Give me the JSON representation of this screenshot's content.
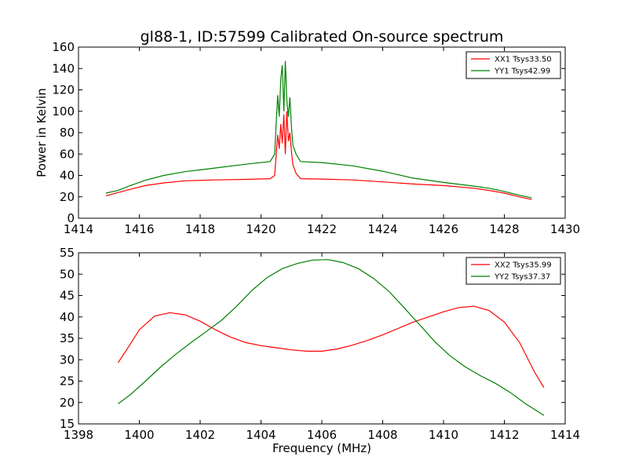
{
  "figure": {
    "title": "gl88-1, ID:57599 Calibrated On-source spectrum"
  },
  "chart_data": [
    {
      "type": "line",
      "title": "gl88-1, ID:57599 Calibrated On-source spectrum",
      "xlabel": "",
      "ylabel": "Power in Kelvin",
      "xlim": [
        1414,
        1430
      ],
      "ylim": [
        0,
        160
      ],
      "xticks": [
        "1414",
        "1416",
        "1418",
        "1420",
        "1422",
        "1424",
        "1426",
        "1428",
        "1430"
      ],
      "yticks": [
        "0",
        "20",
        "40",
        "60",
        "80",
        "100",
        "120",
        "140",
        "160"
      ],
      "grid": false,
      "legend_position": "top-right",
      "series": [
        {
          "name": "XX1 Tsys33.50",
          "color": "#ff0000",
          "points": [
            [
              1414.9,
              21
            ],
            [
              1415.3,
              24
            ],
            [
              1415.7,
              27
            ],
            [
              1416.2,
              30.5
            ],
            [
              1416.8,
              33
            ],
            [
              1417.5,
              35
            ],
            [
              1418.5,
              35.8
            ],
            [
              1419.5,
              36.3
            ],
            [
              1420.3,
              37
            ],
            [
              1420.45,
              40
            ],
            [
              1420.5,
              60
            ],
            [
              1420.55,
              78
            ],
            [
              1420.6,
              65
            ],
            [
              1420.65,
              88
            ],
            [
              1420.7,
              70
            ],
            [
              1420.75,
              97
            ],
            [
              1420.8,
              60
            ],
            [
              1420.85,
              100
            ],
            [
              1420.9,
              72
            ],
            [
              1420.95,
              80
            ],
            [
              1421.0,
              62
            ],
            [
              1421.05,
              50
            ],
            [
              1421.15,
              42
            ],
            [
              1421.3,
              37
            ],
            [
              1422.0,
              36.6
            ],
            [
              1423.0,
              35.8
            ],
            [
              1424.0,
              34
            ],
            [
              1425.0,
              32
            ],
            [
              1426.0,
              30.5
            ],
            [
              1427.0,
              28
            ],
            [
              1427.5,
              26
            ],
            [
              1428.0,
              23.5
            ],
            [
              1428.5,
              20
            ],
            [
              1428.9,
              17.5
            ]
          ]
        },
        {
          "name": "YY1 Tsys42.99",
          "color": "#008000",
          "points": [
            [
              1414.9,
              23.5
            ],
            [
              1415.3,
              26
            ],
            [
              1415.7,
              30.5
            ],
            [
              1416.2,
              35.5
            ],
            [
              1416.8,
              40
            ],
            [
              1417.5,
              43.5
            ],
            [
              1418.5,
              47
            ],
            [
              1419.5,
              50.5
            ],
            [
              1420.3,
              53
            ],
            [
              1420.45,
              60
            ],
            [
              1420.5,
              90
            ],
            [
              1420.55,
              115
            ],
            [
              1420.6,
              95
            ],
            [
              1420.65,
              130
            ],
            [
              1420.7,
              143
            ],
            [
              1420.75,
              100
            ],
            [
              1420.8,
              147
            ],
            [
              1420.85,
              110
            ],
            [
              1420.9,
              95
            ],
            [
              1420.95,
              113
            ],
            [
              1421.0,
              85
            ],
            [
              1421.05,
              68
            ],
            [
              1421.15,
              60
            ],
            [
              1421.3,
              53
            ],
            [
              1422.0,
              52
            ],
            [
              1423.0,
              49
            ],
            [
              1424.0,
              44
            ],
            [
              1425.0,
              37.5
            ],
            [
              1426.0,
              33.5
            ],
            [
              1427.0,
              30
            ],
            [
              1427.5,
              28
            ],
            [
              1428.0,
              25
            ],
            [
              1428.5,
              21.5
            ],
            [
              1428.9,
              19
            ]
          ]
        }
      ]
    },
    {
      "type": "line",
      "title": "",
      "xlabel": "Frequency (MHz)",
      "ylabel": "",
      "xlim": [
        1398,
        1414
      ],
      "ylim": [
        15,
        55
      ],
      "xticks": [
        "1398",
        "1400",
        "1402",
        "1404",
        "1406",
        "1408",
        "1410",
        "1412",
        "1414"
      ],
      "yticks": [
        "15",
        "20",
        "25",
        "30",
        "35",
        "40",
        "45",
        "50",
        "55"
      ],
      "grid": false,
      "legend_position": "top-right",
      "series": [
        {
          "name": "XX2 Tsys35.99",
          "color": "#ff0000",
          "points": [
            [
              1399.3,
              29.3
            ],
            [
              1399.6,
              32.5
            ],
            [
              1400.0,
              37
            ],
            [
              1400.5,
              40.2
            ],
            [
              1401.0,
              41
            ],
            [
              1401.5,
              40.5
            ],
            [
              1402.0,
              39
            ],
            [
              1402.5,
              37
            ],
            [
              1403.0,
              35.3
            ],
            [
              1403.5,
              34
            ],
            [
              1404.0,
              33.3
            ],
            [
              1404.5,
              32.8
            ],
            [
              1405.0,
              32.3
            ],
            [
              1405.5,
              32
            ],
            [
              1406.0,
              32
            ],
            [
              1406.5,
              32.5
            ],
            [
              1407.0,
              33.4
            ],
            [
              1407.5,
              34.5
            ],
            [
              1408.0,
              35.8
            ],
            [
              1408.5,
              37.3
            ],
            [
              1409.0,
              38.8
            ],
            [
              1409.5,
              40
            ],
            [
              1410.0,
              41.2
            ],
            [
              1410.5,
              42.2
            ],
            [
              1411.0,
              42.5
            ],
            [
              1411.5,
              41.5
            ],
            [
              1412.0,
              38.8
            ],
            [
              1412.5,
              34
            ],
            [
              1413.0,
              27
            ],
            [
              1413.3,
              23.5
            ]
          ]
        },
        {
          "name": "YY2 Tsys37.37",
          "color": "#008000",
          "points": [
            [
              1399.3,
              19.7
            ],
            [
              1399.7,
              21.8
            ],
            [
              1400.2,
              25
            ],
            [
              1400.7,
              28.3
            ],
            [
              1401.2,
              31.3
            ],
            [
              1401.7,
              34
            ],
            [
              1402.2,
              36.6
            ],
            [
              1402.7,
              39.2
            ],
            [
              1403.2,
              42.5
            ],
            [
              1403.7,
              46.2
            ],
            [
              1404.2,
              49.2
            ],
            [
              1404.7,
              51.3
            ],
            [
              1405.2,
              52.5
            ],
            [
              1405.7,
              53.3
            ],
            [
              1406.2,
              53.4
            ],
            [
              1406.7,
              52.7
            ],
            [
              1407.2,
              51.3
            ],
            [
              1407.7,
              49
            ],
            [
              1408.2,
              46
            ],
            [
              1408.7,
              42.2
            ],
            [
              1409.2,
              38.3
            ],
            [
              1409.7,
              34.3
            ],
            [
              1410.2,
              31
            ],
            [
              1410.7,
              28.4
            ],
            [
              1411.2,
              26.3
            ],
            [
              1411.7,
              24.5
            ],
            [
              1412.2,
              22.3
            ],
            [
              1412.7,
              19.7
            ],
            [
              1413.3,
              17
            ]
          ]
        }
      ]
    }
  ]
}
